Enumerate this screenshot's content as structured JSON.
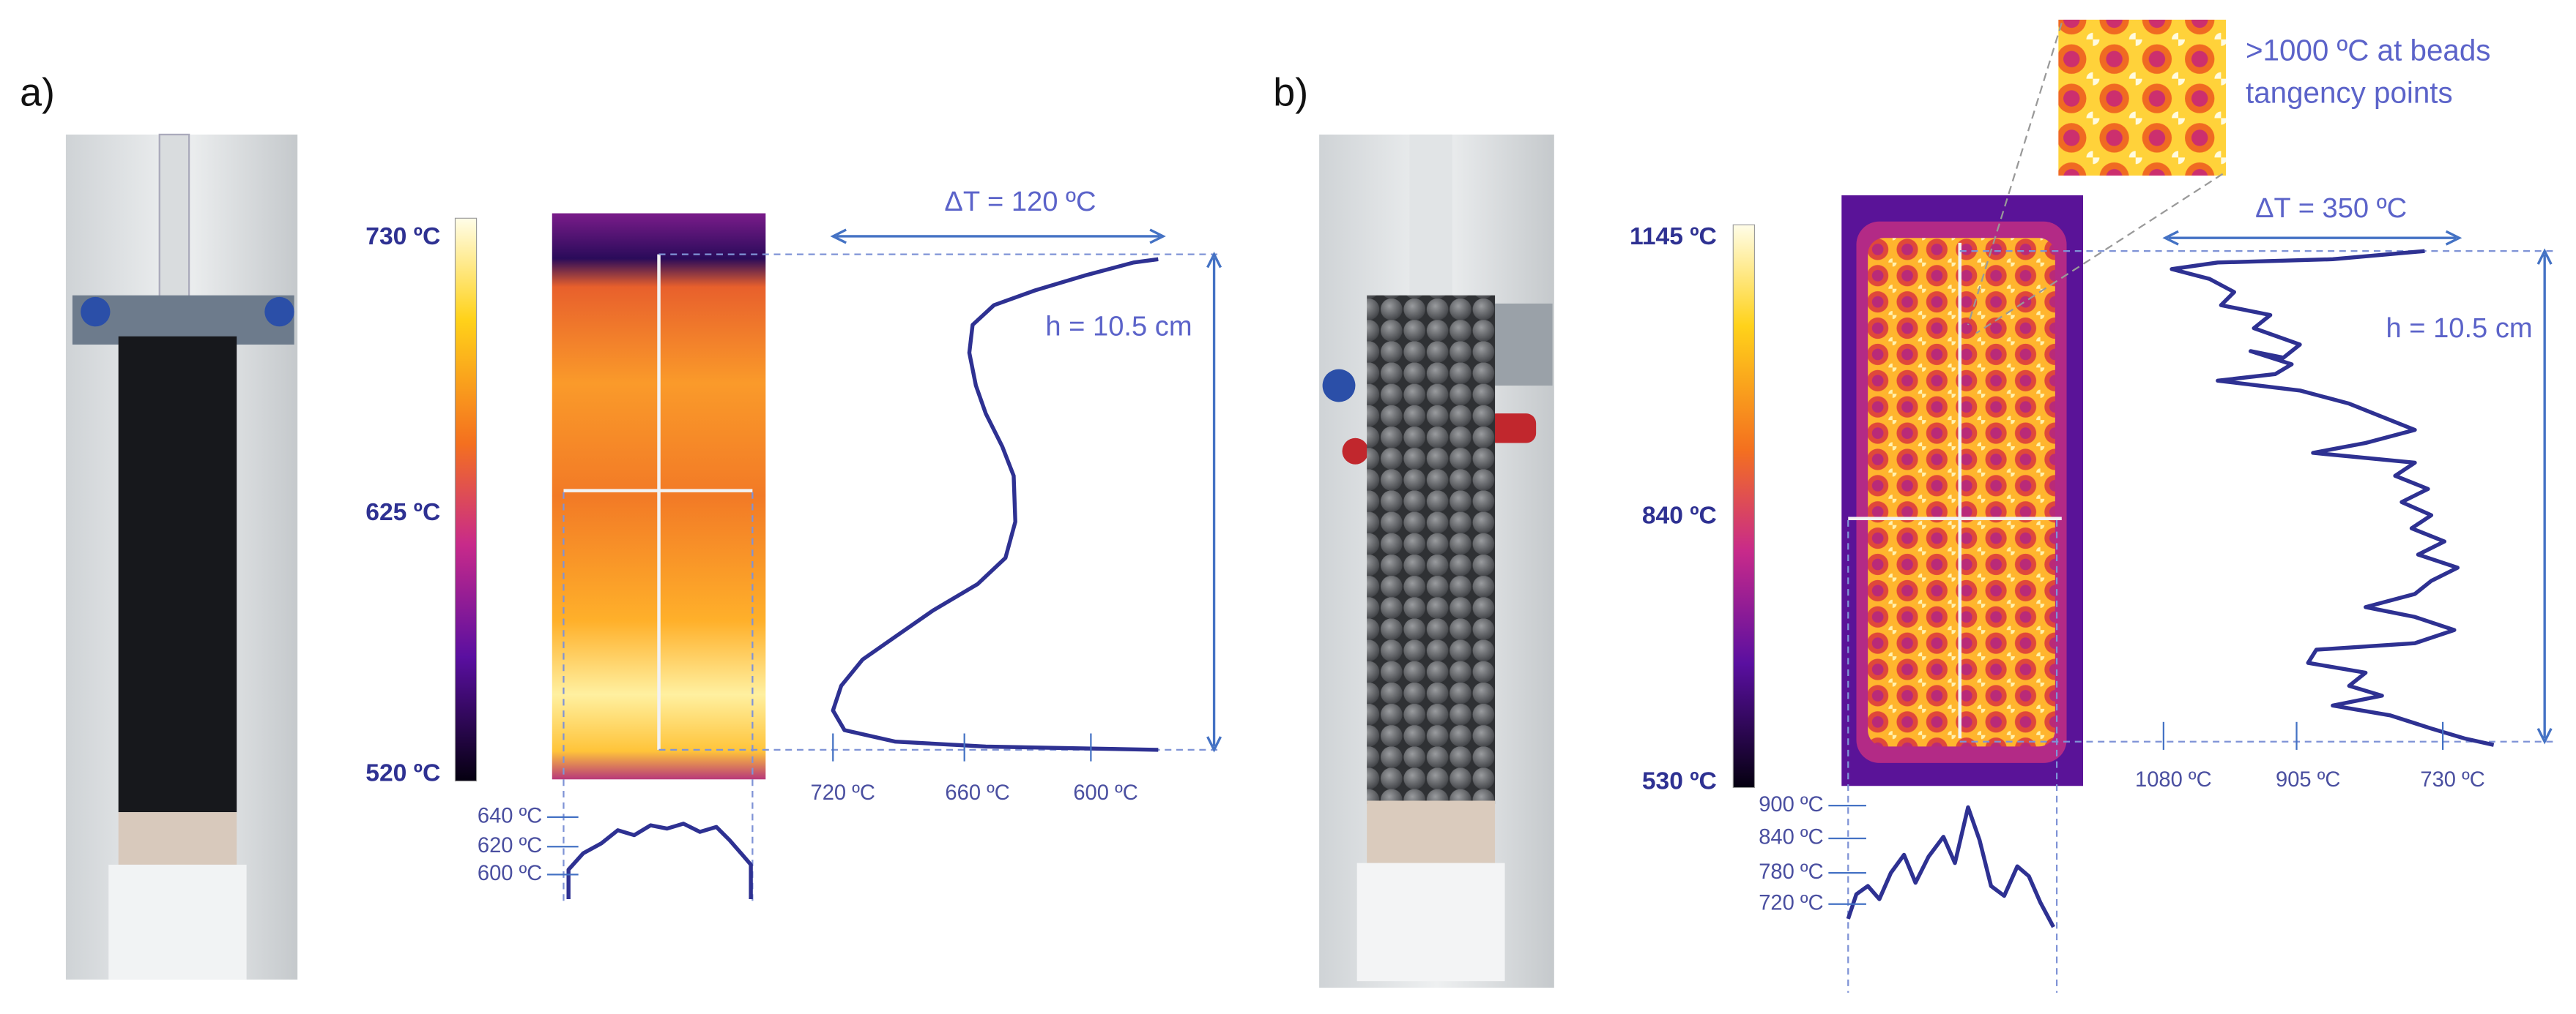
{
  "panels": [
    {
      "label": "a)",
      "colorbar": [
        "730 ºC",
        "625 ºC",
        "520 ºC"
      ],
      "delta_t": "ΔT = 120 ºC",
      "height": "h = 10.5 cm",
      "line_ticks": [
        "720 ºC",
        "660 ºC",
        "600 ºC"
      ],
      "profile_ticks": [
        "640 ºC",
        "620 ºC",
        "600 ºC"
      ]
    },
    {
      "label": "b)",
      "colorbar": [
        "1145 ºC",
        "840 ºC",
        "530 ºC"
      ],
      "delta_t": "ΔT = 350 ºC",
      "height": "h = 10.5 cm",
      "line_ticks": [
        "1080 ºC",
        "905 ºC",
        "730 ºC"
      ],
      "profile_ticks": [
        "900 ºC",
        "840 ºC",
        "780 ºC",
        "720 ºC"
      ],
      "inset_note": [
        ">1000 ºC at beads",
        "tangency points"
      ]
    }
  ]
}
